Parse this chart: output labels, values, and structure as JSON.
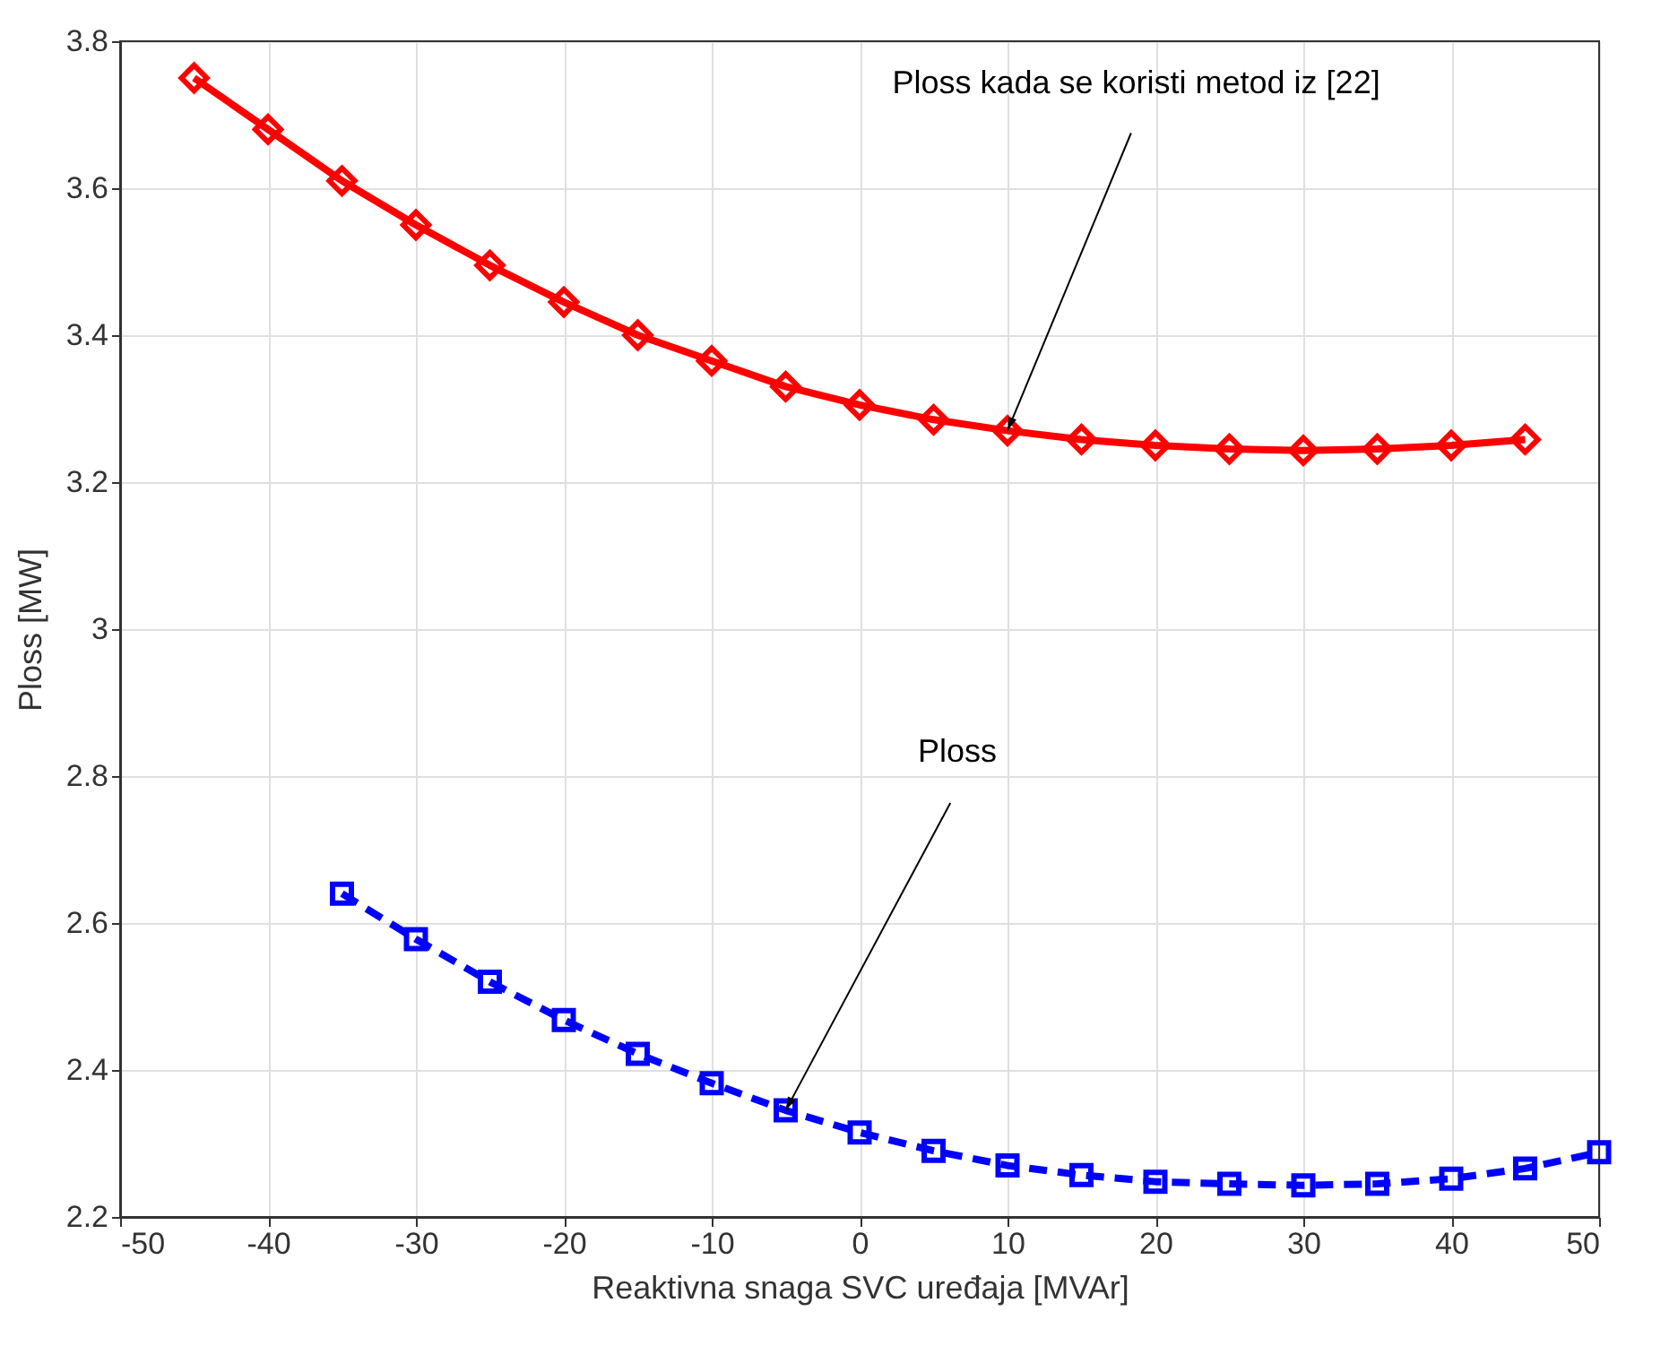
{
  "chart_data": {
    "type": "line",
    "xlabel": "Reaktivna snaga SVC uređaja [MVAr]",
    "ylabel": "Ploss [MW]",
    "xlim": [
      -50,
      50
    ],
    "xticks": [
      -50,
      -40,
      -30,
      -20,
      -10,
      0,
      10,
      20,
      30,
      40,
      50
    ],
    "ylim": [
      2.2,
      3.8
    ],
    "yticks": [
      2.2,
      2.4,
      2.6,
      2.8,
      3,
      3.2,
      3.4,
      3.6,
      3.8
    ],
    "grid": true,
    "series": [
      {
        "color": "#ff0000",
        "marker": "diamond",
        "line_style": "solid",
        "x": [
          -45,
          -40,
          -35,
          -30,
          -25,
          -20,
          -15,
          -10,
          -5,
          0,
          5,
          10,
          15,
          20,
          25,
          30,
          35,
          40,
          45
        ],
        "values": [
          3.75,
          3.68,
          3.61,
          3.55,
          3.495,
          3.445,
          3.4,
          3.365,
          3.33,
          3.305,
          3.285,
          3.27,
          3.258,
          3.25,
          3.245,
          3.243,
          3.245,
          3.25,
          3.258
        ]
      },
      {
        "color": "#0000ff",
        "marker": "square",
        "line_style": "dashed",
        "x": [
          -35,
          -30,
          -25,
          -20,
          -15,
          -10,
          -5,
          0,
          5,
          10,
          15,
          20,
          25,
          30,
          35,
          40,
          45,
          50
        ],
        "values": [
          2.64,
          2.578,
          2.52,
          2.468,
          2.422,
          2.382,
          2.345,
          2.315,
          2.29,
          2.27,
          2.257,
          2.248,
          2.245,
          2.243,
          2.245,
          2.252,
          2.266,
          2.288
        ]
      }
    ],
    "annotations": [
      {
        "text": "Ploss kada se koristi metod iz [22]",
        "x": 10,
        "y": 3.27
      },
      {
        "text": "Ploss",
        "x": -5,
        "y": 2.345
      }
    ]
  }
}
